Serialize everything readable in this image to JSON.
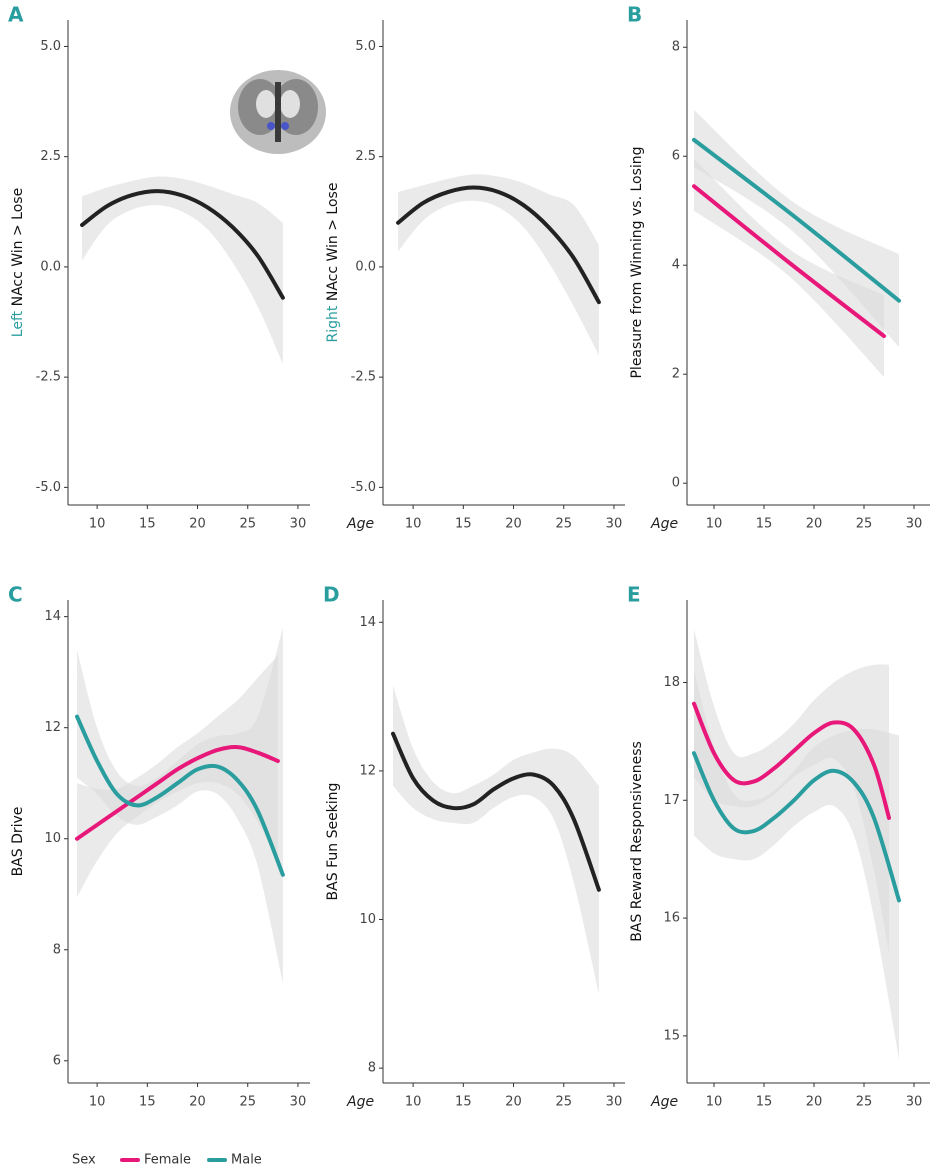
{
  "chart_data": [
    {
      "type": "line",
      "panel_label": "A",
      "ylabel_highlight": "Left",
      "ylabel": "NAcc Win > Lose",
      "highlight_color": "#2a9d9f",
      "xlim": [
        7.1,
        31.2
      ],
      "xticks": [
        10,
        15,
        20,
        25,
        30
      ],
      "ylim": [
        -5.4,
        5.6
      ],
      "yticks": [
        {
          "value": -5,
          "label": "-5.0"
        },
        {
          "value": -2.5,
          "label": "-2.5"
        },
        {
          "value": 0,
          "label": "0.0"
        },
        {
          "value": 2.5,
          "label": "2.5"
        },
        {
          "value": 5,
          "label": "5.0"
        }
      ],
      "series": [
        {
          "color": "#222222",
          "x": [
            8.5,
            11,
            13.5,
            16,
            18.5,
            21,
            23.5,
            26,
            28.5
          ],
          "values": [
            0.95,
            1.38,
            1.63,
            1.72,
            1.62,
            1.35,
            0.9,
            0.25,
            -0.7
          ],
          "lower": [
            0.15,
            0.95,
            1.3,
            1.4,
            1.25,
            0.85,
            0.1,
            -0.9,
            -2.2
          ],
          "upper": [
            1.6,
            1.8,
            1.95,
            2.05,
            2.0,
            1.85,
            1.65,
            1.45,
            1.0
          ]
        }
      ]
    },
    {
      "type": "line",
      "ylabel_highlight": "Right",
      "ylabel": "NAcc Win > Lose",
      "highlight_color": "#2a9d9f",
      "xlabel": "Age",
      "xlim": [
        7.0,
        31.1
      ],
      "xticks": [
        10,
        15,
        20,
        25,
        30
      ],
      "ylim": [
        -5.4,
        5.6
      ],
      "yticks": [
        {
          "value": -5,
          "label": "-5.0"
        },
        {
          "value": -2.5,
          "label": "-2.5"
        },
        {
          "value": 0,
          "label": "0.0"
        },
        {
          "value": 2.5,
          "label": "2.5"
        },
        {
          "value": 5,
          "label": "5.0"
        }
      ],
      "series": [
        {
          "color": "#222222",
          "x": [
            8.5,
            11,
            13.5,
            16,
            18.5,
            21,
            23.5,
            26,
            28.5
          ],
          "values": [
            1.0,
            1.45,
            1.7,
            1.8,
            1.7,
            1.4,
            0.9,
            0.2,
            -0.8
          ],
          "lower": [
            0.35,
            1.05,
            1.4,
            1.5,
            1.35,
            0.9,
            0.1,
            -0.9,
            -2.0
          ],
          "upper": [
            1.7,
            1.85,
            2.0,
            2.1,
            2.05,
            1.9,
            1.65,
            1.4,
            0.5
          ]
        }
      ]
    },
    {
      "type": "line",
      "panel_label": "B",
      "ylabel": "Pleasure from Winning vs. Losing",
      "xlabel": "Age",
      "xlim": [
        7.3,
        31.6
      ],
      "xticks": [
        10,
        15,
        20,
        25,
        30
      ],
      "ylim": [
        -0.4,
        8.5
      ],
      "yticks": [
        0,
        2,
        4,
        6,
        8
      ],
      "series": [
        {
          "name": "Female",
          "color": "#e8177a",
          "x": [
            8,
            17.5,
            27
          ],
          "values": [
            5.45,
            4.05,
            2.7
          ],
          "lower": [
            5.0,
            3.8,
            1.95
          ],
          "upper": [
            5.95,
            4.3,
            3.45
          ]
        },
        {
          "name": "Male",
          "color": "#2a9d9f",
          "x": [
            8,
            18,
            28.5
          ],
          "values": [
            6.3,
            4.9,
            3.35
          ],
          "lower": [
            5.8,
            4.6,
            2.5
          ],
          "upper": [
            6.85,
            5.15,
            4.2
          ]
        }
      ]
    },
    {
      "type": "line",
      "panel_label": "C",
      "ylabel": "BAS Drive",
      "xlim": [
        7.1,
        31.2
      ],
      "xticks": [
        10,
        15,
        20,
        25,
        30
      ],
      "ylim": [
        5.6,
        14.3
      ],
      "yticks": [
        6,
        8,
        10,
        12,
        14
      ],
      "series": [
        {
          "name": "Female",
          "color": "#e8177a",
          "x": [
            8,
            10,
            12,
            14,
            16,
            18,
            20,
            22,
            24,
            26,
            28
          ],
          "values": [
            10.0,
            10.25,
            10.5,
            10.75,
            11.0,
            11.25,
            11.45,
            11.6,
            11.65,
            11.55,
            11.4
          ],
          "lower": [
            8.95,
            9.6,
            10.1,
            10.4,
            10.65,
            10.85,
            11.0,
            11.0,
            10.8,
            10.3,
            9.6
          ],
          "upper": [
            11.0,
            10.9,
            10.9,
            11.1,
            11.35,
            11.65,
            11.9,
            12.2,
            12.5,
            12.9,
            13.3
          ]
        },
        {
          "name": "Male",
          "color": "#2a9d9f",
          "x": [
            8,
            10,
            12,
            14,
            16,
            18,
            20,
            22,
            24,
            26,
            28.5
          ],
          "values": [
            12.2,
            11.4,
            10.8,
            10.6,
            10.75,
            11.0,
            11.25,
            11.3,
            11.05,
            10.5,
            9.35
          ],
          "lower": [
            11.1,
            10.8,
            10.4,
            10.25,
            10.4,
            10.6,
            10.85,
            10.8,
            10.35,
            9.5,
            7.4
          ],
          "upper": [
            13.4,
            12.0,
            11.2,
            10.95,
            11.1,
            11.4,
            11.7,
            11.85,
            11.9,
            12.2,
            13.8
          ]
        }
      ]
    },
    {
      "type": "line",
      "panel_label": "D",
      "ylabel": "BAS Fun Seeking",
      "xlabel": "Age",
      "xlim": [
        7.0,
        31.1
      ],
      "xticks": [
        10,
        15,
        20,
        25,
        30
      ],
      "ylim": [
        7.8,
        14.3
      ],
      "yticks": [
        8,
        10,
        12,
        14
      ],
      "series": [
        {
          "color": "#222222",
          "x": [
            8,
            10,
            12,
            14,
            16,
            18,
            20,
            22,
            24,
            26,
            28.5
          ],
          "values": [
            12.5,
            11.9,
            11.6,
            11.5,
            11.55,
            11.75,
            11.9,
            11.95,
            11.8,
            11.35,
            10.4
          ],
          "lower": [
            11.8,
            11.5,
            11.35,
            11.3,
            11.3,
            11.5,
            11.65,
            11.65,
            11.35,
            10.5,
            9.0
          ],
          "upper": [
            13.15,
            12.3,
            11.85,
            11.7,
            11.8,
            11.95,
            12.15,
            12.25,
            12.3,
            12.2,
            11.8
          ]
        }
      ]
    },
    {
      "type": "line",
      "panel_label": "E",
      "ylabel": "BAS Reward Responsiveness",
      "xlabel": "Age",
      "xlim": [
        7.3,
        31.6
      ],
      "xticks": [
        10,
        15,
        20,
        25,
        30
      ],
      "ylim": [
        14.6,
        18.7
      ],
      "yticks": [
        15,
        16,
        17,
        18
      ],
      "series": [
        {
          "name": "Female",
          "color": "#e8177a",
          "x": [
            8,
            10,
            12,
            14,
            16,
            18,
            20,
            22,
            24,
            26,
            27.5
          ],
          "values": [
            17.82,
            17.4,
            17.17,
            17.16,
            17.27,
            17.42,
            17.57,
            17.66,
            17.6,
            17.3,
            16.85
          ],
          "lower": [
            17.2,
            17.0,
            16.95,
            16.95,
            17.05,
            17.2,
            17.3,
            17.35,
            17.1,
            16.4,
            15.7
          ],
          "upper": [
            18.45,
            17.8,
            17.4,
            17.4,
            17.5,
            17.65,
            17.85,
            18.0,
            18.1,
            18.15,
            18.15
          ]
        },
        {
          "name": "Male",
          "color": "#2a9d9f",
          "x": [
            8,
            10,
            12,
            14,
            16,
            18,
            20,
            22,
            24,
            26,
            28.5
          ],
          "values": [
            17.4,
            17.0,
            16.76,
            16.74,
            16.85,
            17.0,
            17.17,
            17.25,
            17.15,
            16.85,
            16.15
          ],
          "lower": [
            16.7,
            16.55,
            16.5,
            16.5,
            16.62,
            16.78,
            16.9,
            16.95,
            16.7,
            16.0,
            14.8
          ],
          "upper": [
            18.1,
            17.45,
            17.05,
            17.0,
            17.08,
            17.25,
            17.45,
            17.55,
            17.6,
            17.6,
            17.55
          ]
        }
      ]
    }
  ],
  "legend_title": "Sex"
}
